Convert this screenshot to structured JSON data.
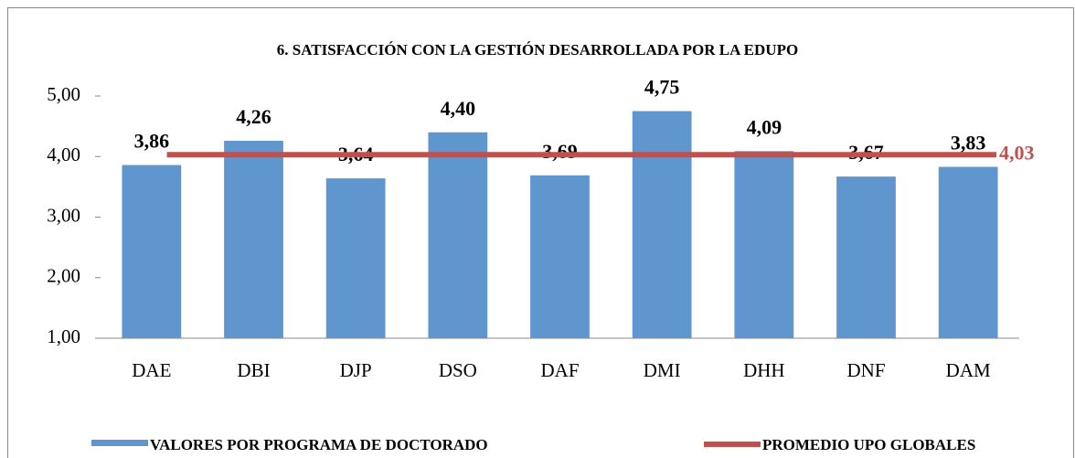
{
  "chart_data": {
    "type": "bar",
    "title": "6. SATISFACCIÓN CON LA GESTIÓN DESARROLLADA POR LA  EDUPO",
    "categories": [
      "DAE",
      "DBI",
      "DJP",
      "DSO",
      "DAF",
      "DMI",
      "DHH",
      "DNF",
      "DAM"
    ],
    "series": [
      {
        "name": "VALORES POR PROGRAMA DE DOCTORADO",
        "color": "#5f96cd",
        "values": [
          3.86,
          4.26,
          3.64,
          4.4,
          3.69,
          4.75,
          4.09,
          3.67,
          3.83
        ],
        "value_labels": [
          "3,86",
          "4,26",
          "3,64",
          "4,40",
          "3,69",
          "4,75",
          "4,09",
          "3,67",
          "3,83"
        ]
      }
    ],
    "reference_line": {
      "name": "PROMEDIO UPO GLOBALES",
      "value": 4.03,
      "value_label": "4,03",
      "color": "#c0504d"
    },
    "ylim": [
      1,
      5
    ],
    "yticks": [
      {
        "value": 1,
        "label": "1,00"
      },
      {
        "value": 2,
        "label": "2,00"
      },
      {
        "value": 3,
        "label": "3,00"
      },
      {
        "value": 4,
        "label": "4,00"
      },
      {
        "value": 5,
        "label": "5,00"
      }
    ],
    "grid": false,
    "legend": "bottom"
  }
}
